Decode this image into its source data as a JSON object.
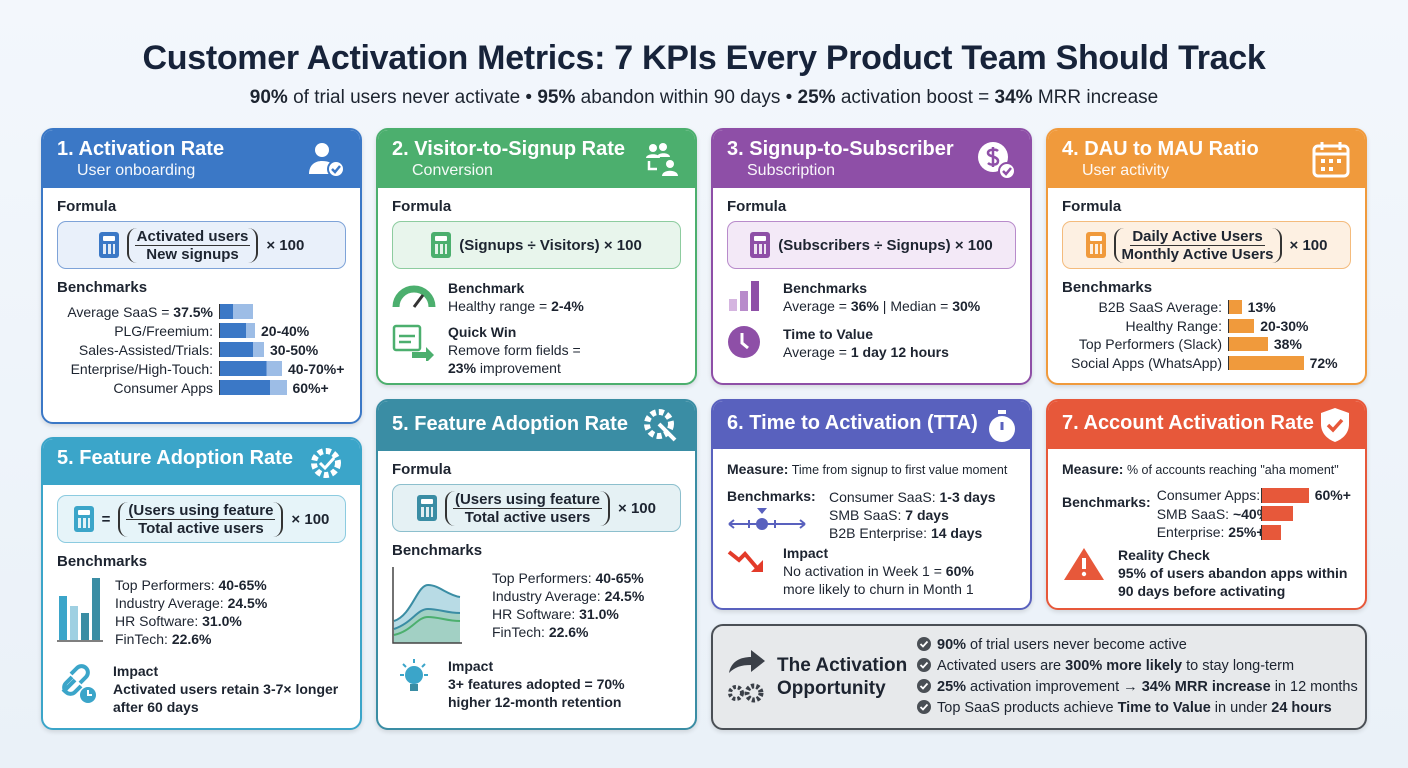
{
  "title": "Customer Activation Metrics: 7 KPIs Every Product Team Should Track",
  "subtitle": {
    "p1": "90%",
    "t1": " of trial users never activate • ",
    "p2": "95%",
    "t2": " abandon within 90 days • ",
    "p3": "25%",
    "t3": " activation boost = ",
    "p4": "34%",
    "t4": " MRR increase"
  },
  "colors": {
    "blue": "#3b78c6",
    "green": "#4caf6e",
    "purple": "#8e4fa7",
    "orange": "#f09a3c",
    "teal": "#3ba5c9",
    "teal_dark": "#3a8da4",
    "indigo": "#5961be",
    "red": "#e7583a",
    "gray": "#e7e9eb"
  },
  "card1": {
    "title": "1. Activation Rate",
    "subtitle": "User onboarding",
    "icon": "user-check-icon",
    "formula_label": "Formula",
    "num": "Activated users",
    "den": "New signups",
    "mult": "× 100",
    "bench_label": "Benchmarks",
    "bars": [
      {
        "label": "Average SaaS = ",
        "value": "37.5%",
        "fill": 37.5
      },
      {
        "label": "PLG/Freemium:",
        "value": "20-40%",
        "fill": 40
      },
      {
        "label": "Sales-Assisted/Trials:",
        "value": "30-50%",
        "fill": 50
      },
      {
        "label": "Enterprise/High-Touch:",
        "value": "40-70%+",
        "fill": 70
      },
      {
        "label": "Consumer Apps",
        "value": "60%+",
        "fill": 75
      }
    ]
  },
  "card2": {
    "title": "2. Visitor-to-Signup Rate",
    "subtitle": "Conversion",
    "icon": "users-arrow-icon",
    "formula_label": "Formula",
    "formula": "(Signups ÷ Visitors) × 100",
    "bench_title": "Benchmark",
    "bench_text": "Healthy range = ",
    "bench_value": "2-4%",
    "win_title": "Quick Win",
    "win_text": "Remove form fields =",
    "win_value": "23%",
    "win_text2": " improvement"
  },
  "card3": {
    "title": "3. Signup-to-Subscriber",
    "subtitle": "Subscription",
    "icon": "dollar-check-icon",
    "formula_label": "Formula",
    "formula": "(Subscribers ÷ Signups) × 100",
    "bench_title": "Benchmarks",
    "avg_text": "Average = ",
    "avg": "36%",
    "med_text": "Median = ",
    "med": "30%",
    "ttv_title": "Time to Value",
    "ttv_text": "Average = ",
    "ttv": "1 day 12 hours"
  },
  "card4": {
    "title": "4. DAU to MAU Ratio",
    "subtitle": "User activity",
    "icon": "calendar-icon",
    "formula_label": "Formula",
    "num": "Daily Active Users",
    "den": "Monthly Active Users",
    "mult": "× 100",
    "bench_label": "Benchmarks",
    "bars": [
      {
        "label": "B2B SaaS Average:",
        "value": "13%",
        "fill": 13
      },
      {
        "label": "Healthy Range:",
        "value": "20-30%",
        "fill": 25
      },
      {
        "label": "Top Performers (Slack)",
        "value": "38%",
        "fill": 38
      },
      {
        "label": "Social Apps (WhatsApp)",
        "value": "72%",
        "fill": 72
      }
    ]
  },
  "card5a": {
    "title": "5. Feature Adoption Rate",
    "icon": "gear-check-icon",
    "eq": "=",
    "num": "(Users using feature",
    "den": "Total active users",
    "mult": "× 100",
    "bench_label": "Benchmarks",
    "stats": [
      {
        "label": "Top Performers: ",
        "value": "40-65%"
      },
      {
        "label": "Industry Average: ",
        "value": "24.5%"
      },
      {
        "label": "HR Software: ",
        "value": "31.0%"
      },
      {
        "label": "FinTech: ",
        "value": "22.6%"
      }
    ],
    "impact_title": "Impact",
    "impact": "Activated users retain 3-7× longer after 60 days"
  },
  "card5b": {
    "title": "5. Feature Adoption Rate",
    "icon": "gear-wrench-icon",
    "formula_label": "Formula",
    "num": "(Users using feature",
    "den": "Total active users",
    "mult": "× 100",
    "bench_label": "Benchmarks",
    "stats": [
      {
        "label": "Top Performers: ",
        "value": "40-65%"
      },
      {
        "label": "Industry Average: ",
        "value": "24.5%"
      },
      {
        "label": "HR Software: ",
        "value": "31.0%"
      },
      {
        "label": "FinTech: ",
        "value": "22.6%"
      }
    ],
    "impact_title": "Impact",
    "impact": "3+ features adopted = 70% higher 12-month retention"
  },
  "card6": {
    "title": "6. Time to Activation (TTA)",
    "icon": "stopwatch-icon",
    "measure_label": "Measure:",
    "measure": " Time from signup to first value moment",
    "bench_label": "Benchmarks:",
    "bench": [
      {
        "label": "Consumer SaaS: ",
        "value": "1-3 days"
      },
      {
        "label": "SMB SaaS: ",
        "value": "7 days"
      },
      {
        "label": "B2B Enterprise: ",
        "value": "14 days"
      }
    ],
    "impact_title": "Impact",
    "impact1": "No activation in Week 1 = ",
    "impact_value": "60%",
    "impact2": "more likely to churn in Month 1"
  },
  "card7": {
    "title": "7. Account Activation Rate",
    "icon": "shield-check-icon",
    "measure_label": "Measure:",
    "measure": " % of accounts reaching \"aha moment\"",
    "bench_label": "Benchmarks:",
    "bench": [
      {
        "label": "Consumer Apps:",
        "value": "60%+",
        "fill": 60
      },
      {
        "label": "SMB SaaS: ",
        "value": "~40%",
        "fill": 40
      },
      {
        "label": "Enterprise: ",
        "value": "25%+",
        "fill": 25
      }
    ],
    "reality_title": "Reality Check",
    "reality1": "95% of users abandon apps within",
    "reality2": "90 days before activating"
  },
  "opportunity": {
    "title1": "The Activation",
    "title2": "Opportunity",
    "items": [
      {
        "b1": "90%",
        "t1": " of trial users never become active",
        "b2": "",
        "t2": ""
      },
      {
        "b1": "",
        "t1": "Activated users are ",
        "b2": "300% more likely",
        "t2": " to stay long-term"
      },
      {
        "b1": "25%",
        "t1": " activation improvement → ",
        "b2": "34% MRR increase",
        "t2": " in 12 months"
      },
      {
        "b1": "",
        "t1": "Top SaaS products achieve ",
        "b2": "Time to Value",
        "t2": " in under ",
        "b3": "24 hours"
      }
    ]
  }
}
